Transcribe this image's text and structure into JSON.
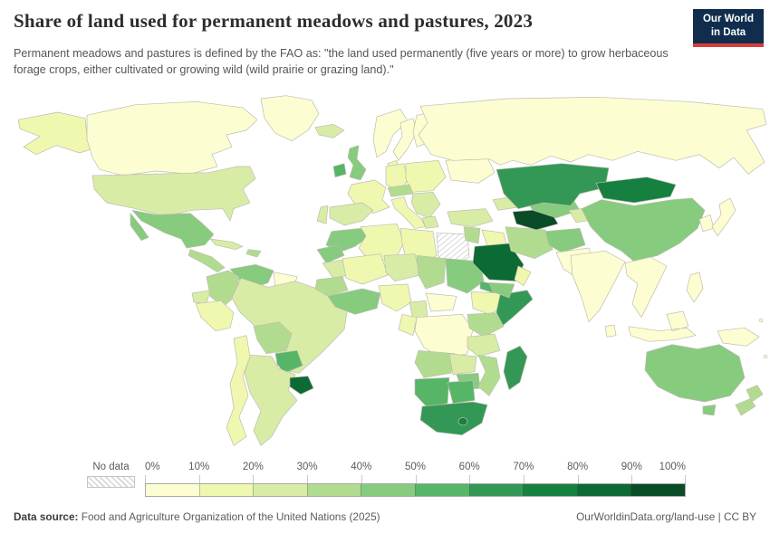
{
  "header": {
    "title": "Share of land used for permanent meadows and pastures, 2023",
    "subtitle": "Permanent meadows and pastures is defined by the FAO as: \"the land used permanently (five years or more) to grow herbaceous forage crops, either cultivated or growing wild (wild prairie or grazing land).\"",
    "logo": {
      "line1": "Our World",
      "line2": "in Data",
      "bg_color": "#102d4e",
      "accent_color": "#d73c37"
    }
  },
  "legend": {
    "no_data_label": "No data",
    "ticks": [
      "0%",
      "10%",
      "20%",
      "30%",
      "40%",
      "50%",
      "60%",
      "70%",
      "80%",
      "90%",
      "100%"
    ]
  },
  "footer": {
    "source_label": "Data source:",
    "source_text": " Food and Agriculture Organization of the United Nations (2025)",
    "link": "OurWorldinData.org/land-use | CC BY"
  },
  "chart_data": {
    "type": "heatmap",
    "subtype": "choropleth-world-map",
    "title": "Share of land used for permanent meadows and pastures, 2023",
    "year": "2023",
    "unit": "% of land area",
    "bins": [
      "0-10%",
      "10-20%",
      "20-30%",
      "30-40%",
      "40-50%",
      "50-60%",
      "60-70%",
      "70-80%",
      "80-90%",
      "90-100%"
    ],
    "palette": [
      "#fdfdd2",
      "#f0f7af",
      "#d8eca6",
      "#b1dc90",
      "#87cb7e",
      "#56b567",
      "#339855",
      "#15803f",
      "#0c6a34",
      "#094c28"
    ],
    "no_data": {
      "label": "No data",
      "style": "hatched"
    },
    "regions": {
      "greenland": {
        "name": "Greenland",
        "bin": "0-10%"
      },
      "canada": {
        "name": "Canada",
        "bin": "0-10%"
      },
      "alaska": {
        "name": "Alaska",
        "bin": "10-20%"
      },
      "usa": {
        "name": "United States",
        "bin": "20-30%"
      },
      "mexico": {
        "name": "Mexico",
        "bin": "40-50%"
      },
      "central-america": {
        "name": "Central America",
        "bin": "30-40%"
      },
      "cuba": {
        "name": "Cuba",
        "bin": "20-30%"
      },
      "hispaniola": {
        "name": "Hispaniola",
        "bin": "30-40%"
      },
      "colombia": {
        "name": "Colombia",
        "bin": "30-40%"
      },
      "venezuela": {
        "name": "Venezuela",
        "bin": "40-50%"
      },
      "guyanas": {
        "name": "Guyana & Suriname",
        "bin": "0-10%"
      },
      "ecuador": {
        "name": "Ecuador",
        "bin": "20-30%"
      },
      "peru": {
        "name": "Peru",
        "bin": "10-20%"
      },
      "brazil": {
        "name": "Brazil",
        "bin": "20-30%"
      },
      "bolivia": {
        "name": "Bolivia",
        "bin": "30-40%"
      },
      "paraguay": {
        "name": "Paraguay",
        "bin": "50-60%"
      },
      "uruguay": {
        "name": "Uruguay",
        "bin": "80-90%"
      },
      "argentina": {
        "name": "Argentina",
        "bin": "20-30%"
      },
      "chile": {
        "name": "Chile",
        "bin": "10-20%"
      },
      "iceland": {
        "name": "Iceland",
        "bin": "20-30%"
      },
      "ireland": {
        "name": "Ireland",
        "bin": "50-60%"
      },
      "uk": {
        "name": "United Kingdom",
        "bin": "40-50%"
      },
      "norway": {
        "name": "Norway",
        "bin": "0-10%"
      },
      "sweden": {
        "name": "Sweden",
        "bin": "0-10%"
      },
      "finland": {
        "name": "Finland",
        "bin": "0-10%"
      },
      "denmark": {
        "name": "Denmark",
        "bin": "10-20%"
      },
      "france": {
        "name": "France",
        "bin": "10-20%"
      },
      "spain": {
        "name": "Spain",
        "bin": "20-30%"
      },
      "portugal": {
        "name": "Portugal",
        "bin": "20-30%"
      },
      "germany": {
        "name": "Germany",
        "bin": "10-20%"
      },
      "central-europe": {
        "name": "Central Europe",
        "bin": "10-20%"
      },
      "switzerland-austria": {
        "name": "Switzerland & Austria",
        "bin": "30-40%"
      },
      "italy": {
        "name": "Italy",
        "bin": "10-20%"
      },
      "balkans": {
        "name": "Balkans",
        "bin": "20-30%"
      },
      "greece": {
        "name": "Greece",
        "bin": "20-30%"
      },
      "ukraine-region": {
        "name": "Ukraine & Belarus",
        "bin": "0-10%"
      },
      "russia": {
        "name": "Russia",
        "bin": "0-10%"
      },
      "morocco": {
        "name": "Morocco",
        "bin": "40-50%"
      },
      "western-sahara": {
        "name": "Western Sahara",
        "bin": "40-50%"
      },
      "mauritania": {
        "name": "Mauritania",
        "bin": "20-30%"
      },
      "algeria": {
        "name": "Algeria",
        "bin": "10-20%"
      },
      "libya": {
        "name": "Libya",
        "bin": "10-20%"
      },
      "egypt": {
        "name": "Egypt",
        "bin": "no-data"
      },
      "mali": {
        "name": "Mali",
        "bin": "10-20%"
      },
      "niger": {
        "name": "Niger",
        "bin": "20-30%"
      },
      "chad": {
        "name": "Chad",
        "bin": "30-40%"
      },
      "sudan": {
        "name": "Sudan",
        "bin": "40-50%"
      },
      "eritrea": {
        "name": "Eritrea",
        "bin": "50-60%"
      },
      "ethiopia": {
        "name": "Ethiopia",
        "bin": "10-20%"
      },
      "somalia": {
        "name": "Somalia",
        "bin": "60-70%"
      },
      "senegal-guinea": {
        "name": "Senegal & Guinea",
        "bin": "30-40%"
      },
      "west-africa": {
        "name": "Côte d'Ivoire & Ghana",
        "bin": "40-50%"
      },
      "nigeria": {
        "name": "Nigeria",
        "bin": "10-20%"
      },
      "cameroon": {
        "name": "Cameroon",
        "bin": "20-30%"
      },
      "car": {
        "name": "Central African Republic",
        "bin": "0-10%"
      },
      "gabon-congo": {
        "name": "Gabon & Congo",
        "bin": "10-20%"
      },
      "drc": {
        "name": "Democratic Republic of Congo",
        "bin": "0-10%"
      },
      "uganda-kenya": {
        "name": "Uganda & Kenya",
        "bin": "30-40%"
      },
      "tanzania": {
        "name": "Tanzania",
        "bin": "20-30%"
      },
      "angola": {
        "name": "Angola",
        "bin": "30-40%"
      },
      "zambia": {
        "name": "Zambia",
        "bin": "20-30%"
      },
      "zimbabwe": {
        "name": "Zimbabwe",
        "bin": "40-50%"
      },
      "mozambique": {
        "name": "Mozambique",
        "bin": "30-40%"
      },
      "namibia": {
        "name": "Namibia",
        "bin": "50-60%"
      },
      "botswana": {
        "name": "Botswana",
        "bin": "50-60%"
      },
      "south-africa": {
        "name": "South Africa",
        "bin": "60-70%"
      },
      "lesotho": {
        "name": "Lesotho",
        "bin": "70-80%"
      },
      "madagascar": {
        "name": "Madagascar",
        "bin": "60-70%"
      },
      "turkey": {
        "name": "Turkey",
        "bin": "20-30%"
      },
      "caucasus": {
        "name": "Caucasus",
        "bin": "20-30%"
      },
      "levant": {
        "name": "Syria & Jordan",
        "bin": "30-40%"
      },
      "iraq": {
        "name": "Iraq",
        "bin": "10-20%"
      },
      "saudi-arabia": {
        "name": "Saudi Arabia",
        "bin": "80-90%"
      },
      "yemen": {
        "name": "Yemen",
        "bin": "40-50%"
      },
      "oman": {
        "name": "Oman",
        "bin": "10-20%"
      },
      "iran": {
        "name": "Iran",
        "bin": "30-40%"
      },
      "afghanistan": {
        "name": "Afghanistan",
        "bin": "40-50%"
      },
      "pakistan": {
        "name": "Pakistan",
        "bin": "0-10%"
      },
      "turkmenistan": {
        "name": "Turkmenistan",
        "bin": "90-100%"
      },
      "uzbekistan": {
        "name": "Uzbekistan",
        "bin": "40-50%"
      },
      "kyrgyzstan-tajikistan": {
        "name": "Kyrgyzstan & Tajikistan",
        "bin": "20-30%"
      },
      "kazakhstan": {
        "name": "Kazakhstan",
        "bin": "60-70%"
      },
      "india": {
        "name": "India",
        "bin": "0-10%"
      },
      "china": {
        "name": "China",
        "bin": "40-50%"
      },
      "mongolia": {
        "name": "Mongolia",
        "bin": "70-80%"
      },
      "se-asia": {
        "name": "Southeast Asia",
        "bin": "0-10%"
      },
      "korea": {
        "name": "Korea",
        "bin": "0-10%"
      },
      "japan": {
        "name": "Japan",
        "bin": "0-10%"
      },
      "sri-lanka": {
        "name": "Sri Lanka",
        "bin": "0-10%"
      },
      "philippines": {
        "name": "Philippines",
        "bin": "0-10%"
      },
      "indonesia": {
        "name": "Indonesia",
        "bin": "0-10%"
      },
      "new-guinea": {
        "name": "Papua New Guinea",
        "bin": "0-10%"
      },
      "pacific-islands": {
        "name": "Pacific Islands",
        "bin": "0-10%"
      },
      "australia": {
        "name": "Australia",
        "bin": "40-50%"
      },
      "tasmania": {
        "name": "Tasmania",
        "bin": "40-50%"
      },
      "new-zealand": {
        "name": "New Zealand",
        "bin": "30-40%"
      }
    }
  }
}
